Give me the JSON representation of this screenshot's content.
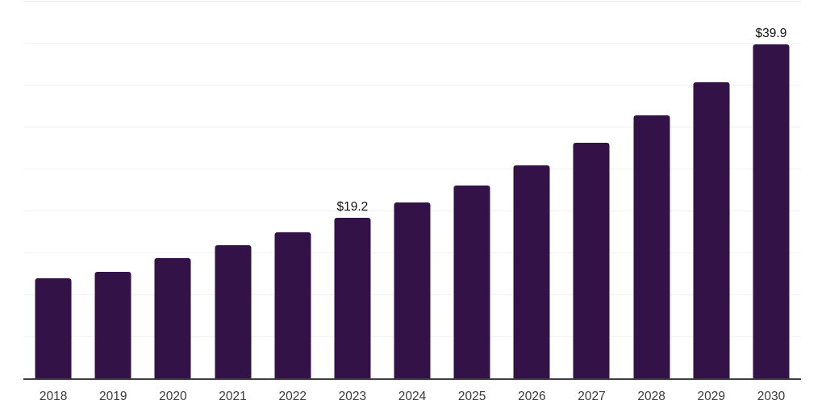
{
  "chart_data": {
    "type": "bar",
    "title": "",
    "xlabel": "",
    "ylabel": "",
    "categories": [
      "2018",
      "2019",
      "2020",
      "2021",
      "2022",
      "2023",
      "2024",
      "2025",
      "2026",
      "2027",
      "2028",
      "2029",
      "2030"
    ],
    "values": [
      12.0,
      12.8,
      14.4,
      16.0,
      17.5,
      19.2,
      21.1,
      23.1,
      25.5,
      28.2,
      31.4,
      35.4,
      39.9
    ],
    "data_labels": [
      null,
      null,
      null,
      null,
      null,
      "$19.2",
      null,
      null,
      null,
      null,
      null,
      null,
      "$39.9"
    ],
    "ylim": [
      0,
      45
    ],
    "grid_step": 5,
    "grid": true,
    "legend_position": "none",
    "colors": {
      "bar": "#331247",
      "gridline": "#f2f2f2",
      "top_gridline": "#ececec",
      "axis_line": "#3f3f3f",
      "tick_label": "#3a3a3a",
      "value_label": "#111111",
      "background": "#ffffff"
    }
  }
}
